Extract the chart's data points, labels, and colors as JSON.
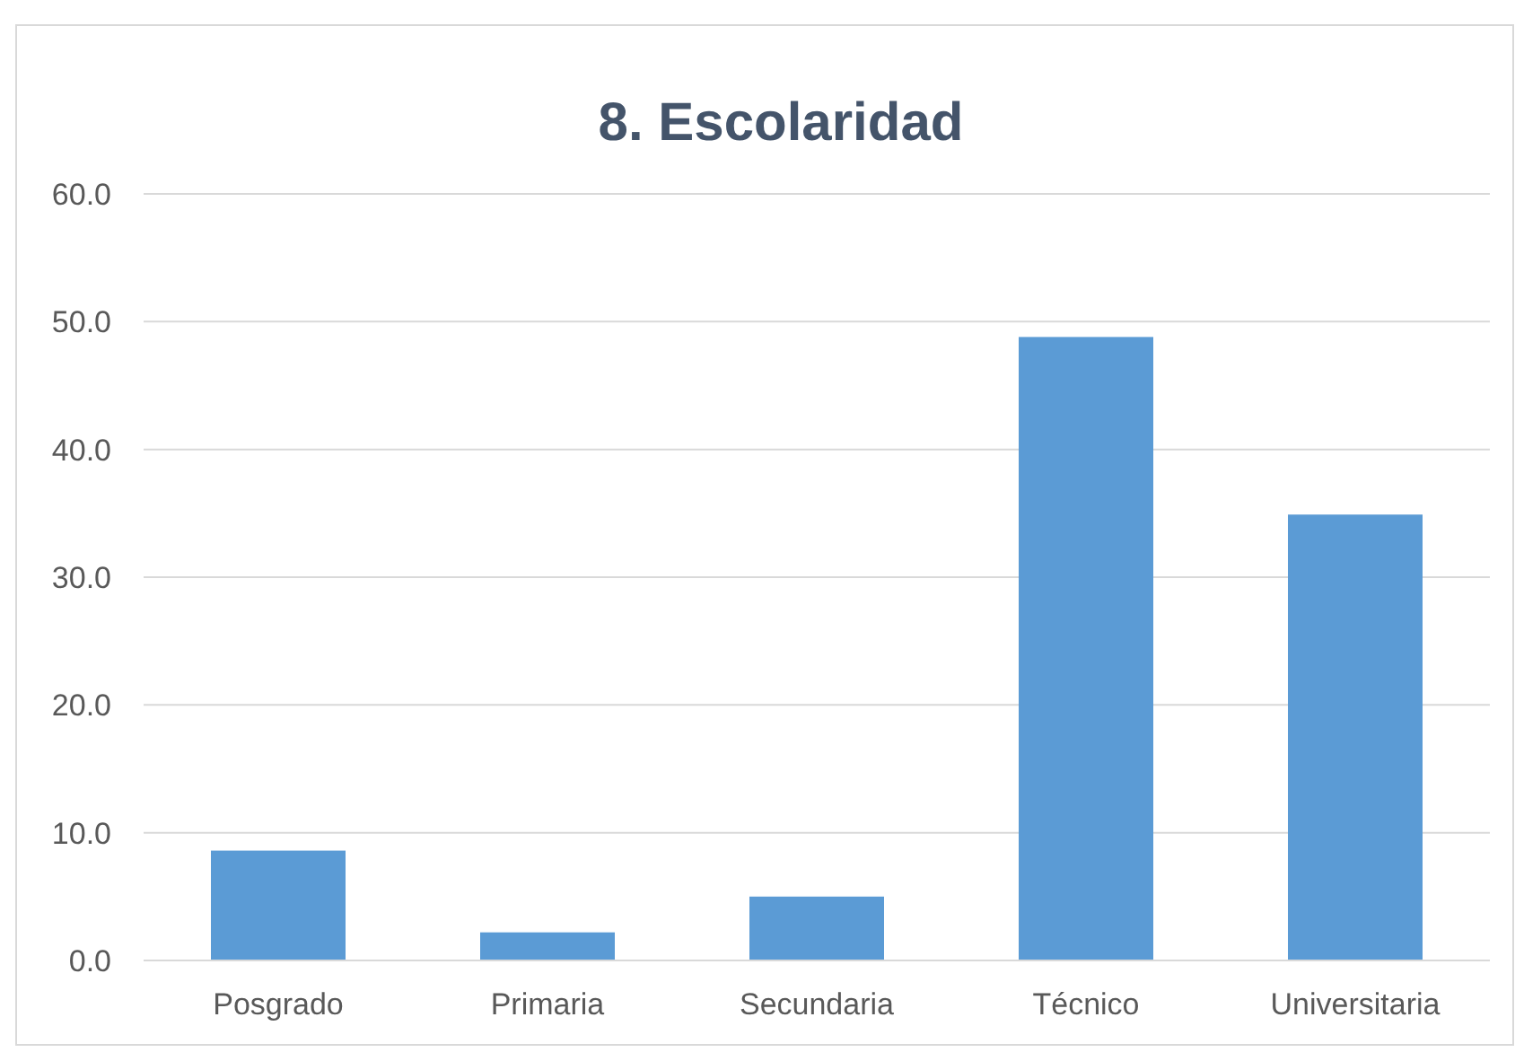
{
  "chart_data": {
    "type": "bar",
    "title": "8. Escolaridad",
    "categories": [
      "Posgrado",
      "Primaria",
      "Secundaria",
      "Técnico",
      "Universitaria"
    ],
    "values": [
      8.6,
      2.2,
      5.0,
      48.8,
      34.9
    ],
    "color": "#5b9bd5",
    "ylim": [
      0,
      60
    ],
    "yticks": [
      {
        "value": 0,
        "label": "0.0"
      },
      {
        "value": 10,
        "label": "10.0"
      },
      {
        "value": 20,
        "label": "20.0"
      },
      {
        "value": 30,
        "label": "30.0"
      },
      {
        "value": 40,
        "label": "40.0"
      },
      {
        "value": 50,
        "label": "50.0"
      },
      {
        "value": 60,
        "label": "60.0"
      }
    ],
    "grid": true
  }
}
